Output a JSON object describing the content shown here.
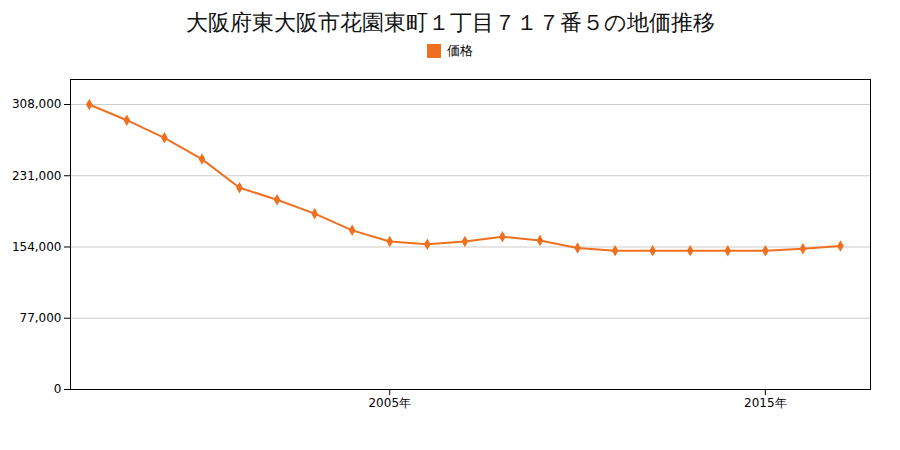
{
  "chart_data": {
    "type": "line",
    "title": "大阪府東大阪市花園東町１丁目７１７番５の地価推移",
    "x": [
      1997,
      1998,
      1999,
      2000,
      2001,
      2002,
      2003,
      2004,
      2005,
      2006,
      2007,
      2008,
      2009,
      2010,
      2011,
      2012,
      2013,
      2014,
      2015,
      2016,
      2017
    ],
    "series": [
      {
        "name": "価格",
        "color": "#f07020",
        "marker": "diamond",
        "values": [
          308000,
          291000,
          272000,
          249000,
          218000,
          205000,
          190000,
          172000,
          160000,
          157000,
          160000,
          165000,
          161000,
          153000,
          150000,
          150000,
          150000,
          150000,
          150000,
          152000,
          155000
        ]
      }
    ],
    "xlim": [
      1996.5,
      2017.8
    ],
    "xticks": [
      {
        "value": 2005,
        "label": "2005年"
      },
      {
        "value": 2015,
        "label": "2015年"
      }
    ],
    "ylim": [
      0,
      335000
    ],
    "yticks": [
      0,
      {
        "value": 77000,
        "label": "77,000"
      },
      {
        "value": 154000,
        "label": "154,000"
      },
      {
        "value": 231000,
        "label": "231,000"
      },
      {
        "value": 308000,
        "label": "308,000"
      }
    ],
    "grid": "y",
    "legend": "top"
  }
}
